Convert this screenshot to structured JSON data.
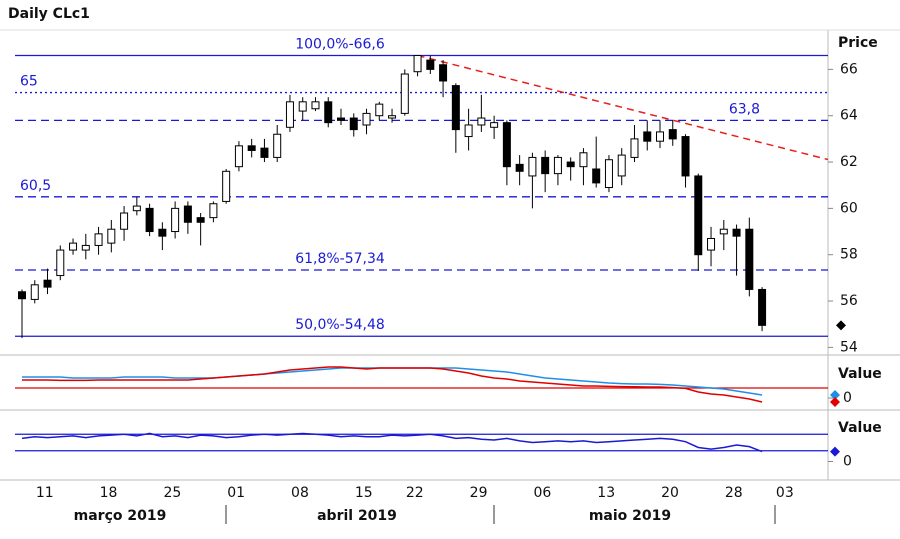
{
  "chart_data": [
    {
      "type": "candlestick",
      "title": "Daily CLc1",
      "ylabel": "Price",
      "categories": [
        null,
        "11",
        null,
        null,
        null,
        null,
        "18",
        null,
        null,
        null,
        null,
        "25",
        null,
        null,
        null,
        null,
        "01",
        null,
        null,
        null,
        null,
        "08",
        null,
        null,
        null,
        null,
        "15",
        null,
        null,
        null,
        "22",
        null,
        null,
        null,
        null,
        "29",
        null,
        null,
        null,
        null,
        "06",
        null,
        null,
        null,
        null,
        "13",
        null,
        null,
        null,
        null,
        "20",
        null,
        null,
        null,
        null,
        "28",
        null,
        null,
        null,
        "03"
      ],
      "months": [
        "março 2019",
        "abril 2019",
        "maio 2019"
      ],
      "open": [
        56.4,
        56.07,
        56.9,
        57.1,
        58.2,
        58.2,
        58.4,
        58.5,
        59.1,
        59.9,
        60.0,
        59.1,
        59.0,
        60.1,
        59.6,
        59.6,
        60.3,
        61.8,
        62.7,
        62.6,
        62.2,
        63.5,
        64.2,
        64.3,
        64.6,
        63.9,
        63.9,
        63.6,
        64.0,
        63.9,
        64.1,
        65.9,
        66.4,
        66.2,
        65.3,
        63.1,
        63.6,
        63.5,
        63.7,
        61.9,
        61.4,
        62.2,
        61.5,
        62.0,
        61.8,
        61.7,
        60.9,
        61.4,
        62.2,
        63.3,
        62.9,
        63.4,
        63.1,
        61.4,
        58.2,
        58.9,
        59.1,
        59.1,
        56.5,
        null
      ],
      "high": [
        56.5,
        56.9,
        57.4,
        58.4,
        58.7,
        58.9,
        59.2,
        59.5,
        60.1,
        60.5,
        60.2,
        59.4,
        60.3,
        60.3,
        59.8,
        60.3,
        61.7,
        62.9,
        63.0,
        63.0,
        63.6,
        64.9,
        64.8,
        64.8,
        64.8,
        64.3,
        64.1,
        64.3,
        64.6,
        64.3,
        66.0,
        66.6,
        66.6,
        66.4,
        65.4,
        64.3,
        64.9,
        64.0,
        63.8,
        62.3,
        62.4,
        62.5,
        62.3,
        62.2,
        62.6,
        63.1,
        62.3,
        62.6,
        63.6,
        63.8,
        63.8,
        63.8,
        63.2,
        61.5,
        59.2,
        59.5,
        59.3,
        59.6,
        56.6,
        null
      ],
      "low": [
        54.4,
        55.9,
        56.3,
        56.9,
        58.0,
        57.8,
        58.0,
        58.1,
        58.6,
        59.7,
        58.8,
        58.2,
        58.7,
        58.9,
        58.4,
        59.4,
        60.2,
        61.6,
        62.2,
        62.0,
        62.0,
        63.3,
        63.8,
        64.2,
        63.5,
        63.6,
        63.1,
        63.2,
        63.8,
        63.7,
        64.0,
        65.7,
        65.8,
        64.8,
        62.4,
        62.5,
        63.3,
        63.0,
        61.0,
        61.0,
        60.0,
        60.7,
        61.0,
        61.2,
        61.0,
        60.9,
        60.7,
        61.0,
        62.0,
        62.5,
        62.6,
        62.7,
        60.9,
        57.3,
        57.5,
        58.2,
        57.1,
        56.2,
        54.7,
        null
      ],
      "close": [
        56.1,
        56.7,
        56.6,
        58.2,
        58.5,
        58.4,
        58.9,
        59.1,
        59.8,
        60.1,
        59.0,
        58.8,
        60.0,
        59.4,
        59.4,
        60.2,
        61.6,
        62.7,
        62.5,
        62.2,
        63.2,
        64.6,
        64.6,
        64.6,
        63.7,
        63.8,
        63.4,
        64.1,
        64.5,
        64.0,
        65.8,
        66.6,
        66.0,
        65.5,
        63.4,
        63.6,
        63.9,
        63.7,
        61.8,
        61.6,
        62.2,
        61.5,
        62.2,
        61.8,
        62.4,
        61.1,
        62.1,
        62.3,
        63.0,
        62.9,
        63.3,
        63.0,
        61.4,
        58.0,
        58.7,
        59.1,
        58.8,
        56.5,
        54.95,
        null
      ],
      "up_color": "#ffffff",
      "down_color": "#000000",
      "level_color": "#1a1ad6",
      "levels": [
        {
          "value": 66.6,
          "label": "100,0%-66,6",
          "style": "solid",
          "align": "center"
        },
        {
          "value": 65,
          "label": "65",
          "style": "dotted",
          "align": "left"
        },
        {
          "value": 63.8,
          "label": "63,8",
          "style": "dashed",
          "align": "right"
        },
        {
          "value": 60.5,
          "label": "60,5",
          "style": "dashed",
          "align": "left"
        },
        {
          "value": 57.34,
          "label": "61,8%-57,34",
          "style": "dashed",
          "align": "center"
        },
        {
          "value": 54.48,
          "label": "50,0%-54,48",
          "style": "solid",
          "align": "center"
        }
      ],
      "trendline": {
        "x": [
          31,
          59
        ],
        "y": [
          66.6,
          62.69
        ],
        "color": "#e8201c"
      },
      "ylim": [
        53.8,
        67.7
      ],
      "yticks": [
        54,
        56,
        58,
        60,
        62,
        64,
        66
      ]
    },
    {
      "type": "line",
      "ylabel": "Value",
      "ylim": [
        -0.5,
        2.0
      ],
      "yticks": [
        0
      ],
      "hlines": [
        0.5
      ],
      "hline_color": "#e00000",
      "series": [
        {
          "color": "#1e8fe8",
          "values": [
            1.05,
            1.05,
            1.05,
            1.05,
            1.0,
            1.0,
            1.0,
            1.0,
            1.05,
            1.05,
            1.05,
            1.05,
            1.0,
            1.0,
            1.0,
            1.0,
            1.05,
            1.1,
            1.15,
            1.2,
            1.25,
            1.3,
            1.35,
            1.4,
            1.45,
            1.5,
            1.5,
            1.5,
            1.5,
            1.5,
            1.5,
            1.5,
            1.5,
            1.5,
            1.5,
            1.45,
            1.4,
            1.35,
            1.3,
            1.2,
            1.1,
            1.0,
            0.95,
            0.9,
            0.85,
            0.8,
            0.75,
            0.72,
            0.7,
            0.7,
            0.68,
            0.65,
            0.6,
            0.55,
            0.5,
            0.45,
            0.35,
            0.25,
            0.15,
            null
          ]
        },
        {
          "color": "#e00000",
          "values": [
            0.9,
            0.9,
            0.9,
            0.88,
            0.88,
            0.88,
            0.9,
            0.9,
            0.9,
            0.9,
            0.9,
            0.9,
            0.9,
            0.9,
            0.95,
            1.0,
            1.05,
            1.1,
            1.15,
            1.2,
            1.3,
            1.4,
            1.45,
            1.5,
            1.55,
            1.55,
            1.5,
            1.45,
            1.5,
            1.5,
            1.5,
            1.5,
            1.5,
            1.45,
            1.35,
            1.25,
            1.1,
            1.0,
            0.95,
            0.85,
            0.8,
            0.75,
            0.7,
            0.65,
            0.6,
            0.6,
            0.58,
            0.57,
            0.56,
            0.55,
            0.55,
            0.52,
            0.48,
            0.3,
            0.2,
            0.15,
            0.05,
            -0.05,
            -0.2,
            null
          ]
        }
      ]
    },
    {
      "type": "line",
      "ylabel": "Value",
      "ylim": [
        -20,
        60
      ],
      "yticks": [
        0
      ],
      "hlines": [
        33,
        13
      ],
      "hline_color": "#1a1ad6",
      "series": [
        {
          "color": "#1a1ad6",
          "values": [
            28,
            30,
            29,
            30,
            31,
            29,
            31,
            32,
            33,
            31,
            34,
            30,
            31,
            29,
            32,
            31,
            29,
            30,
            32,
            33,
            32,
            33,
            34,
            33,
            32,
            30,
            31,
            30,
            30,
            32,
            31,
            32,
            33,
            31,
            28,
            29,
            27,
            26,
            28,
            25,
            23,
            24,
            25,
            24,
            25,
            23,
            24,
            25,
            26,
            27,
            28,
            27,
            24,
            17,
            15,
            17,
            20,
            18,
            12,
            null
          ]
        }
      ]
    }
  ]
}
